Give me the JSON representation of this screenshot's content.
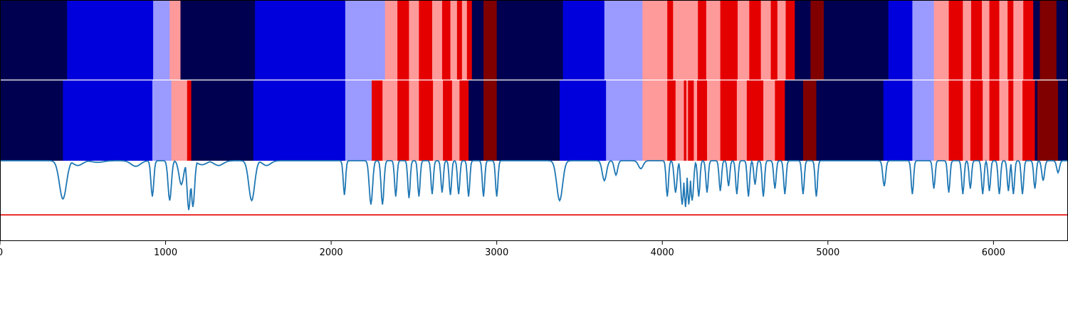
{
  "chart_data": {
    "type": "heatmap",
    "xlim": [
      0,
      6450
    ],
    "xticks": [
      "0",
      "1000",
      "2000",
      "3000",
      "4000",
      "5000",
      "6000"
    ],
    "xtick_values": [
      0,
      1000,
      2000,
      3000,
      4000,
      5000,
      6000
    ],
    "palette": {
      "dark_navy": "#000050",
      "blue": "#0000dc",
      "light_blue": "#9a9aff",
      "light_red": "#ff9a9a",
      "red": "#e50000",
      "dark_red": "#800000"
    },
    "rows": [
      {
        "segments": [
          [
            0,
            405,
            "dark_navy"
          ],
          [
            405,
            925,
            "blue"
          ],
          [
            925,
            1025,
            "light_blue"
          ],
          [
            1025,
            1090,
            "light_red"
          ],
          [
            1090,
            1540,
            "dark_navy"
          ],
          [
            1540,
            2085,
            "blue"
          ],
          [
            2085,
            2325,
            "light_blue"
          ],
          [
            2325,
            2400,
            "light_red"
          ],
          [
            2400,
            2470,
            "red"
          ],
          [
            2470,
            2530,
            "light_red"
          ],
          [
            2530,
            2610,
            "red"
          ],
          [
            2610,
            2670,
            "light_red"
          ],
          [
            2670,
            2720,
            "red"
          ],
          [
            2720,
            2760,
            "light_red"
          ],
          [
            2760,
            2790,
            "red"
          ],
          [
            2790,
            2820,
            "light_red"
          ],
          [
            2820,
            2850,
            "red"
          ],
          [
            2850,
            2920,
            "dark_navy"
          ],
          [
            2920,
            3000,
            "dark_red"
          ],
          [
            3000,
            3400,
            "dark_navy"
          ],
          [
            3400,
            3650,
            "blue"
          ],
          [
            3650,
            3880,
            "light_blue"
          ],
          [
            3880,
            4030,
            "light_red"
          ],
          [
            4030,
            4065,
            "red"
          ],
          [
            4065,
            4215,
            "light_red"
          ],
          [
            4215,
            4265,
            "red"
          ],
          [
            4265,
            4350,
            "light_red"
          ],
          [
            4350,
            4455,
            "red"
          ],
          [
            4455,
            4525,
            "light_red"
          ],
          [
            4525,
            4595,
            "red"
          ],
          [
            4595,
            4655,
            "light_red"
          ],
          [
            4655,
            4695,
            "red"
          ],
          [
            4695,
            4745,
            "light_red"
          ],
          [
            4745,
            4800,
            "red"
          ],
          [
            4800,
            4895,
            "dark_navy"
          ],
          [
            4895,
            4975,
            "dark_red"
          ],
          [
            4975,
            5365,
            "dark_navy"
          ],
          [
            5365,
            5510,
            "blue"
          ],
          [
            5510,
            5640,
            "light_blue"
          ],
          [
            5640,
            5730,
            "light_red"
          ],
          [
            5730,
            5815,
            "red"
          ],
          [
            5815,
            5865,
            "light_red"
          ],
          [
            5865,
            5930,
            "red"
          ],
          [
            5930,
            5975,
            "light_red"
          ],
          [
            5975,
            6035,
            "red"
          ],
          [
            6035,
            6085,
            "light_red"
          ],
          [
            6085,
            6120,
            "red"
          ],
          [
            6120,
            6180,
            "light_red"
          ],
          [
            6180,
            6240,
            "red"
          ],
          [
            6240,
            6280,
            "dark_navy"
          ],
          [
            6280,
            6380,
            "dark_red"
          ],
          [
            6380,
            6450,
            "dark_navy"
          ]
        ]
      },
      {
        "segments": [
          [
            0,
            380,
            "dark_navy"
          ],
          [
            380,
            920,
            "blue"
          ],
          [
            920,
            1035,
            "light_blue"
          ],
          [
            1035,
            1130,
            "light_red"
          ],
          [
            1130,
            1155,
            "red"
          ],
          [
            1155,
            1530,
            "dark_navy"
          ],
          [
            1530,
            2085,
            "blue"
          ],
          [
            2085,
            2245,
            "light_blue"
          ],
          [
            2245,
            2310,
            "red"
          ],
          [
            2310,
            2400,
            "light_red"
          ],
          [
            2400,
            2470,
            "red"
          ],
          [
            2470,
            2530,
            "light_red"
          ],
          [
            2530,
            2615,
            "red"
          ],
          [
            2615,
            2675,
            "light_red"
          ],
          [
            2675,
            2730,
            "red"
          ],
          [
            2730,
            2775,
            "light_red"
          ],
          [
            2775,
            2830,
            "red"
          ],
          [
            2830,
            2920,
            "dark_navy"
          ],
          [
            2920,
            3000,
            "dark_red"
          ],
          [
            3000,
            3380,
            "dark_navy"
          ],
          [
            3380,
            3660,
            "blue"
          ],
          [
            3660,
            3880,
            "light_blue"
          ],
          [
            3880,
            4030,
            "light_red"
          ],
          [
            4030,
            4080,
            "red"
          ],
          [
            4080,
            4130,
            "light_red"
          ],
          [
            4130,
            4145,
            "red"
          ],
          [
            4145,
            4155,
            "light_red"
          ],
          [
            4155,
            4190,
            "red"
          ],
          [
            4190,
            4210,
            "light_red"
          ],
          [
            4210,
            4270,
            "red"
          ],
          [
            4270,
            4350,
            "light_red"
          ],
          [
            4350,
            4450,
            "red"
          ],
          [
            4450,
            4510,
            "light_red"
          ],
          [
            4510,
            4610,
            "red"
          ],
          [
            4610,
            4680,
            "light_red"
          ],
          [
            4680,
            4740,
            "red"
          ],
          [
            4740,
            4850,
            "dark_navy"
          ],
          [
            4850,
            4930,
            "dark_red"
          ],
          [
            4930,
            5335,
            "dark_navy"
          ],
          [
            5335,
            5510,
            "blue"
          ],
          [
            5510,
            5640,
            "light_blue"
          ],
          [
            5640,
            5730,
            "light_red"
          ],
          [
            5730,
            5815,
            "red"
          ],
          [
            5815,
            5860,
            "light_red"
          ],
          [
            5860,
            5935,
            "red"
          ],
          [
            5935,
            5975,
            "light_red"
          ],
          [
            5975,
            6035,
            "red"
          ],
          [
            6035,
            6090,
            "light_red"
          ],
          [
            6090,
            6120,
            "red"
          ],
          [
            6120,
            6175,
            "light_red"
          ],
          [
            6175,
            6250,
            "red"
          ],
          [
            6250,
            6265,
            "dark_navy"
          ],
          [
            6265,
            6390,
            "dark_red"
          ],
          [
            6390,
            6450,
            "dark_navy"
          ]
        ]
      }
    ],
    "line_panel": {
      "ylim": [
        -1.0,
        0.0
      ],
      "threshold": -0.68,
      "threshold_color": "#e50000",
      "line_color": "#1f77b4",
      "spikes": [
        [
          380,
          -0.48,
          30
        ],
        [
          470,
          -0.06,
          40
        ],
        [
          590,
          -0.02,
          50
        ],
        [
          820,
          -0.07,
          40
        ],
        [
          920,
          -0.45,
          12
        ],
        [
          1025,
          -0.5,
          14
        ],
        [
          1095,
          -0.3,
          20
        ],
        [
          1140,
          -0.62,
          14
        ],
        [
          1165,
          -0.58,
          14
        ],
        [
          1220,
          -0.05,
          40
        ],
        [
          1320,
          -0.06,
          40
        ],
        [
          1520,
          -0.5,
          25
        ],
        [
          1610,
          -0.06,
          35
        ],
        [
          2080,
          -0.43,
          10
        ],
        [
          2240,
          -0.55,
          14
        ],
        [
          2310,
          -0.55,
          12
        ],
        [
          2390,
          -0.45,
          10
        ],
        [
          2470,
          -0.47,
          10
        ],
        [
          2530,
          -0.45,
          10
        ],
        [
          2610,
          -0.42,
          10
        ],
        [
          2670,
          -0.4,
          10
        ],
        [
          2720,
          -0.43,
          10
        ],
        [
          2770,
          -0.42,
          10
        ],
        [
          2830,
          -0.45,
          10
        ],
        [
          2920,
          -0.45,
          10
        ],
        [
          3000,
          -0.45,
          10
        ],
        [
          3380,
          -0.5,
          25
        ],
        [
          3650,
          -0.25,
          18
        ],
        [
          3720,
          -0.18,
          14
        ],
        [
          3870,
          -0.1,
          20
        ],
        [
          4030,
          -0.45,
          10
        ],
        [
          4080,
          -0.4,
          12
        ],
        [
          4120,
          -0.55,
          12
        ],
        [
          4140,
          -0.58,
          10
        ],
        [
          4160,
          -0.55,
          10
        ],
        [
          4180,
          -0.5,
          12
        ],
        [
          4220,
          -0.45,
          10
        ],
        [
          4270,
          -0.4,
          10
        ],
        [
          4350,
          -0.38,
          10
        ],
        [
          4400,
          -0.32,
          10
        ],
        [
          4450,
          -0.42,
          10
        ],
        [
          4520,
          -0.45,
          10
        ],
        [
          4560,
          -0.3,
          10
        ],
        [
          4610,
          -0.45,
          10
        ],
        [
          4680,
          -0.35,
          10
        ],
        [
          4740,
          -0.42,
          10
        ],
        [
          4850,
          -0.42,
          10
        ],
        [
          4930,
          -0.45,
          10
        ],
        [
          5340,
          -0.32,
          12
        ],
        [
          5510,
          -0.42,
          10
        ],
        [
          5640,
          -0.35,
          10
        ],
        [
          5730,
          -0.4,
          10
        ],
        [
          5815,
          -0.42,
          10
        ],
        [
          5860,
          -0.35,
          10
        ],
        [
          5935,
          -0.42,
          10
        ],
        [
          5975,
          -0.38,
          10
        ],
        [
          6035,
          -0.42,
          10
        ],
        [
          6090,
          -0.38,
          10
        ],
        [
          6120,
          -0.42,
          10
        ],
        [
          6175,
          -0.42,
          10
        ],
        [
          6250,
          -0.35,
          10
        ],
        [
          6300,
          -0.25,
          12
        ],
        [
          6390,
          -0.15,
          12
        ]
      ]
    }
  }
}
